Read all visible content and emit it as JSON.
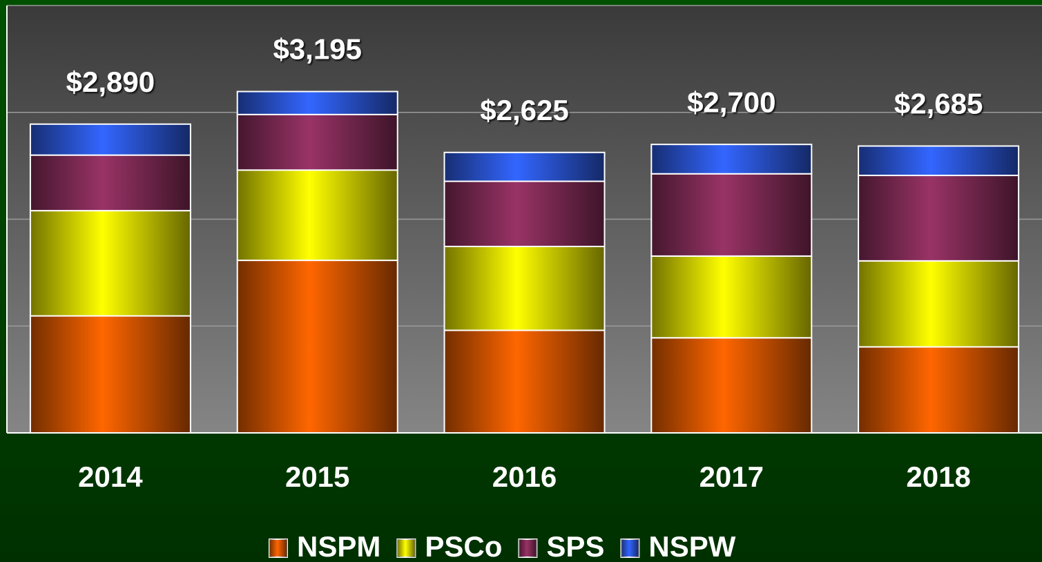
{
  "chart_data": {
    "type": "stacked_bar",
    "categories": [
      "2014",
      "2015",
      "2016",
      "2017",
      "2018"
    ],
    "series": [
      {
        "name": "NSPM",
        "color": "#ff6600",
        "values": [
          1095,
          1615,
          960,
          890,
          805
        ]
      },
      {
        "name": "PSCo",
        "color": "#ffff00",
        "values": [
          985,
          845,
          785,
          765,
          805
        ]
      },
      {
        "name": "SPS",
        "color": "#993366",
        "values": [
          520,
          520,
          610,
          770,
          800
        ]
      },
      {
        "name": "NSPW",
        "color": "#3366ff",
        "values": [
          290,
          215,
          270,
          275,
          275
        ]
      }
    ],
    "totals": [
      2890,
      3195,
      2625,
      2700,
      2685
    ],
    "total_labels": [
      "$2,890",
      "$3,195",
      "$2,625",
      "$2,700",
      "$2,685"
    ],
    "ylim": [
      0,
      4000
    ],
    "yticks": [
      0,
      1000,
      2000,
      3000,
      4000
    ],
    "grid": true
  }
}
